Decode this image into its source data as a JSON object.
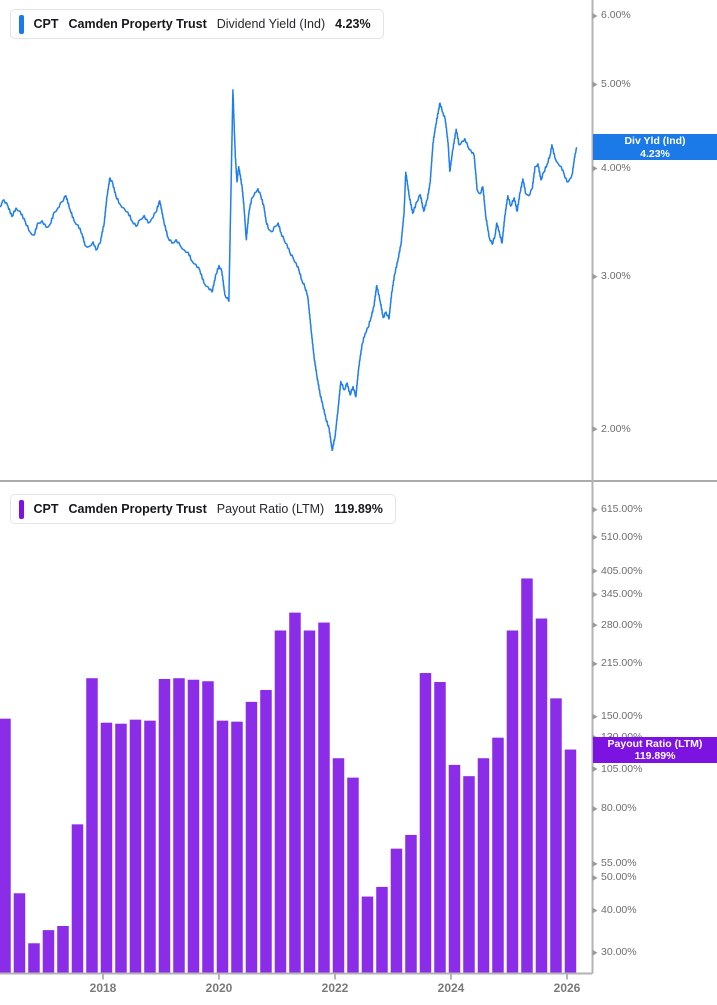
{
  "panels": [
    {
      "legend": {
        "ticker": "CPT",
        "company": "Camden Property Trust",
        "metric": "Dividend Yield (Ind)",
        "value": "4.23%"
      },
      "badge": {
        "label": "Div Yld (Ind)",
        "value": "4.23%"
      },
      "colors": {
        "accent": "#1b79e8",
        "series": "#1f7df2",
        "badge": "#1b79e8"
      },
      "y_ticks": [
        {
          "label": "6.00%",
          "value": 6
        },
        {
          "label": "5.00%",
          "value": 5
        },
        {
          "label": "4.00%",
          "value": 4
        },
        {
          "label": "3.00%",
          "value": 3
        },
        {
          "label": "2.00%",
          "value": 2
        }
      ]
    },
    {
      "legend": {
        "ticker": "CPT",
        "company": "Camden Property Trust",
        "metric": "Payout Ratio (LTM)",
        "value": "119.89%"
      },
      "badge": {
        "label": "Payout Ratio (LTM)",
        "value": "119.89%"
      },
      "colors": {
        "accent": "#7d13e0",
        "series": "#8b2ce8",
        "badge": "#7d13e0"
      },
      "y_ticks": [
        {
          "label": "615.00%",
          "value": 615
        },
        {
          "label": "510.00%",
          "value": 510
        },
        {
          "label": "405.00%",
          "value": 405
        },
        {
          "label": "345.00%",
          "value": 345
        },
        {
          "label": "280.00%",
          "value": 280
        },
        {
          "label": "215.00%",
          "value": 215
        },
        {
          "label": "150.00%",
          "value": 150
        },
        {
          "label": "130.00%",
          "value": 130
        },
        {
          "label": "105.00%",
          "value": 105
        },
        {
          "label": "80.00%",
          "value": 80
        },
        {
          "label": "55.00%",
          "value": 55
        },
        {
          "label": "50.00%",
          "value": 50
        },
        {
          "label": "40.00%",
          "value": 40
        },
        {
          "label": "30.00%",
          "value": 30
        }
      ]
    }
  ],
  "x_ticks": [
    {
      "label": "2018",
      "year": 2018
    },
    {
      "label": "2020",
      "year": 2020
    },
    {
      "label": "2022",
      "year": 2022
    },
    {
      "label": "2024",
      "year": 2024
    },
    {
      "label": "2026",
      "year": 2026
    }
  ],
  "chart_data": [
    {
      "type": "line",
      "name": "CPT Dividend Yield (Indicated)",
      "unit": "%",
      "y_scale": "log",
      "grid": false,
      "legend_position": "top-left",
      "x_range": [
        2016.22,
        2026.17
      ],
      "visible_y_ticks": [
        6,
        5,
        4,
        3,
        2
      ],
      "last_value": 4.23,
      "points": [
        [
          2016.22,
          3.61
        ],
        [
          2016.29,
          3.68
        ],
        [
          2016.36,
          3.62
        ],
        [
          2016.43,
          3.52
        ],
        [
          2016.5,
          3.6
        ],
        [
          2016.57,
          3.57
        ],
        [
          2016.66,
          3.47
        ],
        [
          2016.74,
          3.38
        ],
        [
          2016.81,
          3.35
        ],
        [
          2016.88,
          3.46
        ],
        [
          2016.95,
          3.48
        ],
        [
          2017.02,
          3.42
        ],
        [
          2017.09,
          3.45
        ],
        [
          2017.16,
          3.56
        ],
        [
          2017.22,
          3.6
        ],
        [
          2017.29,
          3.66
        ],
        [
          2017.36,
          3.72
        ],
        [
          2017.43,
          3.59
        ],
        [
          2017.5,
          3.48
        ],
        [
          2017.57,
          3.44
        ],
        [
          2017.64,
          3.36
        ],
        [
          2017.69,
          3.26
        ],
        [
          2017.76,
          3.25
        ],
        [
          2017.83,
          3.29
        ],
        [
          2017.88,
          3.22
        ],
        [
          2017.95,
          3.28
        ],
        [
          2018.02,
          3.46
        ],
        [
          2018.07,
          3.72
        ],
        [
          2018.12,
          3.9
        ],
        [
          2018.17,
          3.84
        ],
        [
          2018.22,
          3.72
        ],
        [
          2018.29,
          3.64
        ],
        [
          2018.36,
          3.6
        ],
        [
          2018.43,
          3.56
        ],
        [
          2018.5,
          3.48
        ],
        [
          2018.57,
          3.43
        ],
        [
          2018.64,
          3.49
        ],
        [
          2018.71,
          3.53
        ],
        [
          2018.78,
          3.46
        ],
        [
          2018.84,
          3.5
        ],
        [
          2018.91,
          3.56
        ],
        [
          2018.98,
          3.67
        ],
        [
          2019.05,
          3.47
        ],
        [
          2019.12,
          3.33
        ],
        [
          2019.19,
          3.28
        ],
        [
          2019.26,
          3.31
        ],
        [
          2019.33,
          3.26
        ],
        [
          2019.4,
          3.22
        ],
        [
          2019.47,
          3.2
        ],
        [
          2019.53,
          3.13
        ],
        [
          2019.6,
          3.1
        ],
        [
          2019.67,
          3.05
        ],
        [
          2019.74,
          2.95
        ],
        [
          2019.81,
          2.92
        ],
        [
          2019.88,
          2.88
        ],
        [
          2019.95,
          3.02
        ],
        [
          2020.0,
          3.09
        ],
        [
          2020.05,
          3.04
        ],
        [
          2020.1,
          2.86
        ],
        [
          2020.17,
          2.81
        ],
        [
          2020.24,
          4.93
        ],
        [
          2020.28,
          4.15
        ],
        [
          2020.31,
          3.86
        ],
        [
          2020.34,
          4.02
        ],
        [
          2020.4,
          3.8
        ],
        [
          2020.43,
          3.62
        ],
        [
          2020.47,
          3.31
        ],
        [
          2020.52,
          3.58
        ],
        [
          2020.57,
          3.7
        ],
        [
          2020.62,
          3.75
        ],
        [
          2020.67,
          3.79
        ],
        [
          2020.72,
          3.72
        ],
        [
          2020.78,
          3.6
        ],
        [
          2020.81,
          3.48
        ],
        [
          2020.86,
          3.4
        ],
        [
          2020.91,
          3.38
        ],
        [
          2020.97,
          3.43
        ],
        [
          2021.02,
          3.46
        ],
        [
          2021.07,
          3.37
        ],
        [
          2021.12,
          3.31
        ],
        [
          2021.17,
          3.27
        ],
        [
          2021.22,
          3.2
        ],
        [
          2021.28,
          3.15
        ],
        [
          2021.33,
          3.11
        ],
        [
          2021.38,
          3.05
        ],
        [
          2021.43,
          2.97
        ],
        [
          2021.48,
          2.92
        ],
        [
          2021.53,
          2.85
        ],
        [
          2021.59,
          2.6
        ],
        [
          2021.64,
          2.42
        ],
        [
          2021.69,
          2.3
        ],
        [
          2021.74,
          2.2
        ],
        [
          2021.79,
          2.13
        ],
        [
          2021.84,
          2.06
        ],
        [
          2021.9,
          2.0
        ],
        [
          2021.95,
          1.89
        ],
        [
          2022.0,
          1.96
        ],
        [
          2022.05,
          2.1
        ],
        [
          2022.1,
          2.27
        ],
        [
          2022.16,
          2.22
        ],
        [
          2022.21,
          2.26
        ],
        [
          2022.26,
          2.19
        ],
        [
          2022.31,
          2.24
        ],
        [
          2022.36,
          2.18
        ],
        [
          2022.41,
          2.36
        ],
        [
          2022.47,
          2.51
        ],
        [
          2022.52,
          2.58
        ],
        [
          2022.57,
          2.62
        ],
        [
          2022.62,
          2.69
        ],
        [
          2022.67,
          2.77
        ],
        [
          2022.72,
          2.93
        ],
        [
          2022.78,
          2.81
        ],
        [
          2022.83,
          2.69
        ],
        [
          2022.88,
          2.73
        ],
        [
          2022.93,
          2.68
        ],
        [
          2022.98,
          2.88
        ],
        [
          2023.03,
          3.02
        ],
        [
          2023.09,
          3.15
        ],
        [
          2023.14,
          3.28
        ],
        [
          2023.19,
          3.55
        ],
        [
          2023.22,
          3.96
        ],
        [
          2023.28,
          3.72
        ],
        [
          2023.34,
          3.55
        ],
        [
          2023.41,
          3.66
        ],
        [
          2023.47,
          3.73
        ],
        [
          2023.53,
          3.57
        ],
        [
          2023.59,
          3.68
        ],
        [
          2023.64,
          3.85
        ],
        [
          2023.69,
          4.28
        ],
        [
          2023.74,
          4.5
        ],
        [
          2023.81,
          4.76
        ],
        [
          2023.86,
          4.64
        ],
        [
          2023.9,
          4.56
        ],
        [
          2023.95,
          4.28
        ],
        [
          2023.98,
          3.97
        ],
        [
          2024.03,
          4.2
        ],
        [
          2024.09,
          4.44
        ],
        [
          2024.14,
          4.26
        ],
        [
          2024.19,
          4.3
        ],
        [
          2024.24,
          4.33
        ],
        [
          2024.29,
          4.24
        ],
        [
          2024.34,
          4.2
        ],
        [
          2024.4,
          4.14
        ],
        [
          2024.45,
          3.78
        ],
        [
          2024.5,
          3.74
        ],
        [
          2024.55,
          3.81
        ],
        [
          2024.6,
          3.52
        ],
        [
          2024.66,
          3.33
        ],
        [
          2024.71,
          3.27
        ],
        [
          2024.76,
          3.35
        ],
        [
          2024.79,
          3.46
        ],
        [
          2024.84,
          3.36
        ],
        [
          2024.88,
          3.28
        ],
        [
          2024.93,
          3.53
        ],
        [
          2024.98,
          3.72
        ],
        [
          2025.03,
          3.62
        ],
        [
          2025.09,
          3.7
        ],
        [
          2025.14,
          3.57
        ],
        [
          2025.19,
          3.75
        ],
        [
          2025.24,
          3.89
        ],
        [
          2025.29,
          3.74
        ],
        [
          2025.34,
          3.72
        ],
        [
          2025.4,
          3.79
        ],
        [
          2025.45,
          4.02
        ],
        [
          2025.5,
          4.05
        ],
        [
          2025.55,
          3.88
        ],
        [
          2025.6,
          3.96
        ],
        [
          2025.66,
          4.05
        ],
        [
          2025.71,
          4.15
        ],
        [
          2025.74,
          4.26
        ],
        [
          2025.79,
          4.12
        ],
        [
          2025.84,
          4.06
        ],
        [
          2025.9,
          4.02
        ],
        [
          2025.95,
          3.94
        ],
        [
          2026.0,
          3.86
        ],
        [
          2026.05,
          3.89
        ],
        [
          2026.09,
          3.94
        ],
        [
          2026.14,
          4.16
        ],
        [
          2026.17,
          4.23
        ]
      ]
    },
    {
      "type": "bar",
      "name": "CPT Payout Ratio (LTM)",
      "unit": "%",
      "y_scale": "log",
      "grid": false,
      "legend_position": "top-left",
      "visible_y_ticks": [
        615,
        510,
        405,
        345,
        280,
        215,
        150,
        130,
        105,
        80,
        55,
        50,
        40,
        30
      ],
      "last_value": 119.89,
      "categories": [
        "Q2 2016",
        "Q3 2016",
        "Q4 2016",
        "Q1 2017",
        "Q2 2017",
        "Q3 2017",
        "Q4 2017",
        "Q1 2018",
        "Q2 2018",
        "Q3 2018",
        "Q4 2018",
        "Q1 2019",
        "Q2 2019",
        "Q3 2019",
        "Q4 2019",
        "Q1 2020",
        "Q2 2020",
        "Q3 2020",
        "Q4 2020",
        "Q1 2021",
        "Q2 2021",
        "Q3 2021",
        "Q4 2021",
        "Q1 2022",
        "Q2 2022",
        "Q3 2022",
        "Q4 2022",
        "Q1 2023",
        "Q2 2023",
        "Q3 2023",
        "Q4 2023",
        "Q1 2024",
        "Q2 2024",
        "Q3 2024",
        "Q4 2024",
        "Q1 2025",
        "Q2 2025",
        "Q3 2025",
        "Q4 2025",
        "Q1 2026"
      ],
      "values": [
        148,
        45,
        32,
        35,
        36,
        72,
        195,
        144,
        143,
        147,
        146,
        194,
        195,
        193,
        191,
        146,
        145,
        166,
        180,
        270,
        305,
        270,
        285,
        113,
        99,
        44,
        47,
        61,
        67,
        202,
        190,
        108,
        100,
        113,
        130,
        270,
        385,
        293,
        170,
        119.89
      ]
    }
  ]
}
